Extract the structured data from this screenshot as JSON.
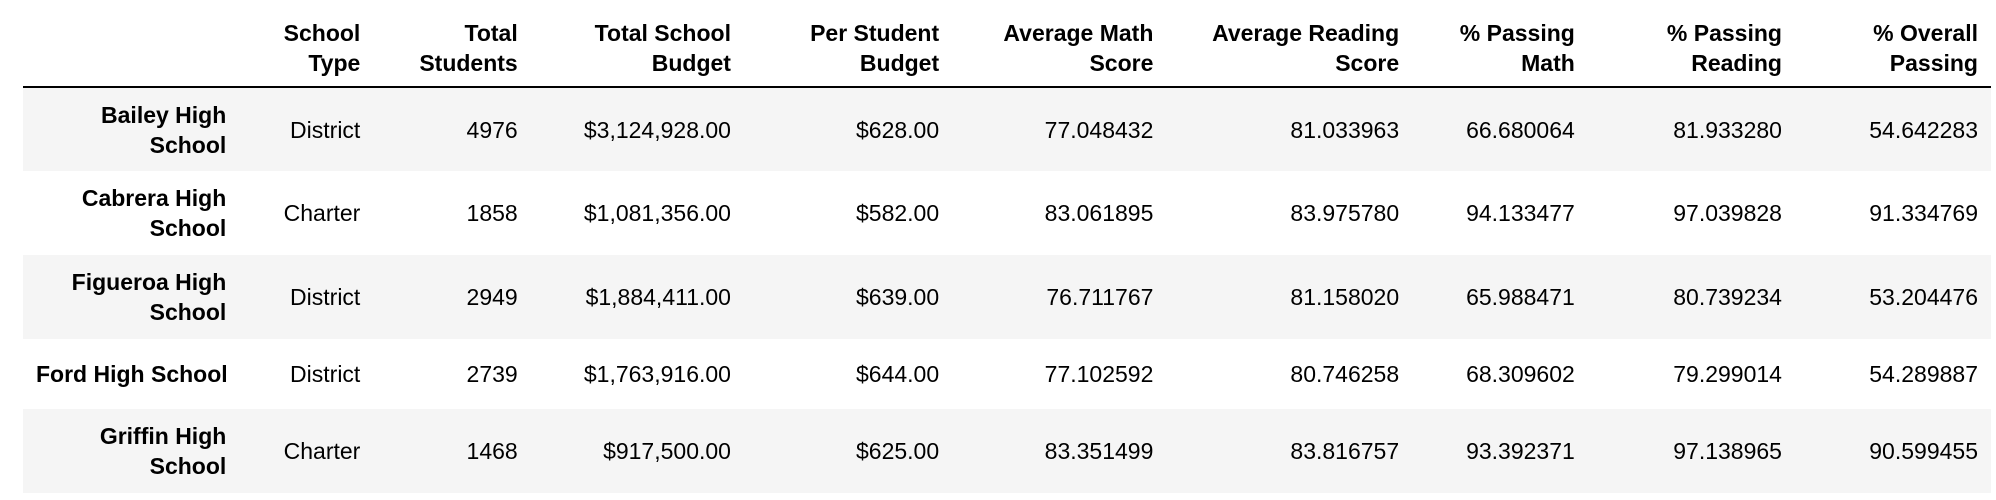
{
  "columns": [
    "",
    "School Type",
    "Total Students",
    "Total School Budget",
    "Per Student Budget",
    "Average Math Score",
    "Average Reading Score",
    "% Passing Math",
    "% Passing Reading",
    "% Overall Passing"
  ],
  "rows": [
    {
      "school": "Bailey High School",
      "type": "District",
      "students": "4976",
      "budget": "$3,124,928.00",
      "per_student": "$628.00",
      "avg_math": "77.048432",
      "avg_reading": "81.033963",
      "pass_math": "66.680064",
      "pass_reading": "81.933280",
      "overall": "54.642283"
    },
    {
      "school": "Cabrera High School",
      "type": "Charter",
      "students": "1858",
      "budget": "$1,081,356.00",
      "per_student": "$582.00",
      "avg_math": "83.061895",
      "avg_reading": "83.975780",
      "pass_math": "94.133477",
      "pass_reading": "97.039828",
      "overall": "91.334769"
    },
    {
      "school": "Figueroa High School",
      "type": "District",
      "students": "2949",
      "budget": "$1,884,411.00",
      "per_student": "$639.00",
      "avg_math": "76.711767",
      "avg_reading": "81.158020",
      "pass_math": "65.988471",
      "pass_reading": "80.739234",
      "overall": "53.204476"
    },
    {
      "school": "Ford High School",
      "type": "District",
      "students": "2739",
      "budget": "$1,763,916.00",
      "per_student": "$644.00",
      "avg_math": "77.102592",
      "avg_reading": "80.746258",
      "pass_math": "68.309602",
      "pass_reading": "79.299014",
      "overall": "54.289887"
    },
    {
      "school": "Griffin High School",
      "type": "Charter",
      "students": "1468",
      "budget": "$917,500.00",
      "per_student": "$625.00",
      "avg_math": "83.351499",
      "avg_reading": "83.816757",
      "pass_math": "93.392371",
      "pass_reading": "97.138965",
      "overall": "90.599455"
    }
  ]
}
